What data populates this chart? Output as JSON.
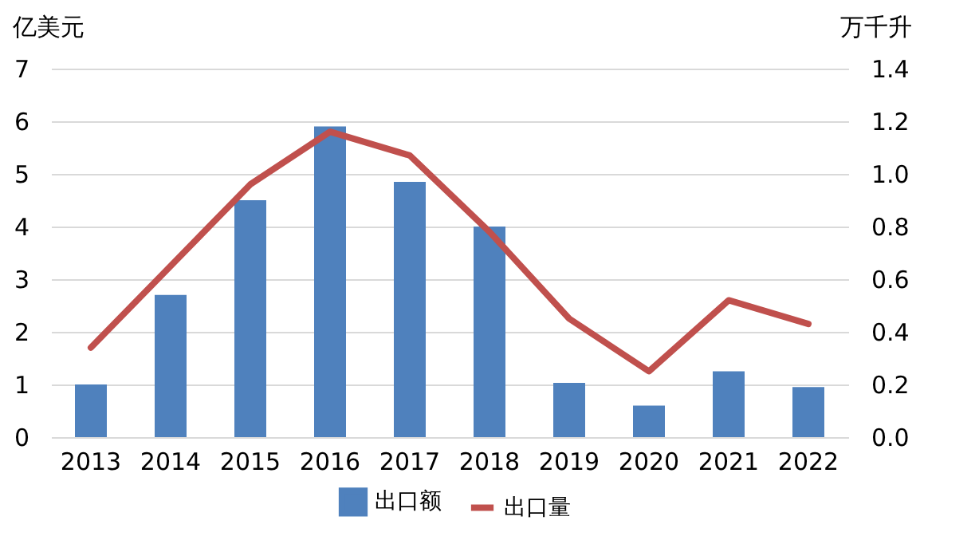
{
  "chart_data": {
    "type": "bar",
    "ylabel": "亿美元",
    "y2label": "万千升",
    "categories": [
      "2013",
      "2014",
      "2015",
      "2016",
      "2017",
      "2018",
      "2019",
      "2020",
      "2021",
      "2022"
    ],
    "series": [
      {
        "name": "出口额",
        "color": "#4f81bd",
        "values": [
          1.0,
          2.7,
          4.5,
          5.9,
          4.85,
          4.0,
          1.03,
          0.6,
          1.25,
          0.95
        ]
      },
      {
        "name": "出口量",
        "type": "line",
        "axis": "y2",
        "color": "#c0504d",
        "values": [
          0.34,
          0.65,
          0.96,
          1.16,
          1.07,
          0.78,
          0.45,
          0.25,
          0.52,
          0.43
        ]
      }
    ],
    "ylim": [
      0,
      7
    ],
    "yticks": [
      0,
      1,
      2,
      3,
      4,
      5,
      6,
      7
    ],
    "y2lim": [
      0,
      1.4
    ],
    "y2ticks": [
      {
        "value": 0,
        "label": "0.0"
      },
      {
        "value": 0.2,
        "label": "0.2"
      },
      {
        "value": 0.4,
        "label": "0.4"
      },
      {
        "value": 0.6,
        "label": "0.6"
      },
      {
        "value": 0.8,
        "label": "0.8"
      },
      {
        "value": 1,
        "label": "1.0"
      },
      {
        "value": 1.2,
        "label": "1.2"
      },
      {
        "value": 1.4,
        "label": "1.4"
      }
    ],
    "grid": "y",
    "legend": "bottom",
    "marker": "none",
    "line_style": "solid"
  }
}
